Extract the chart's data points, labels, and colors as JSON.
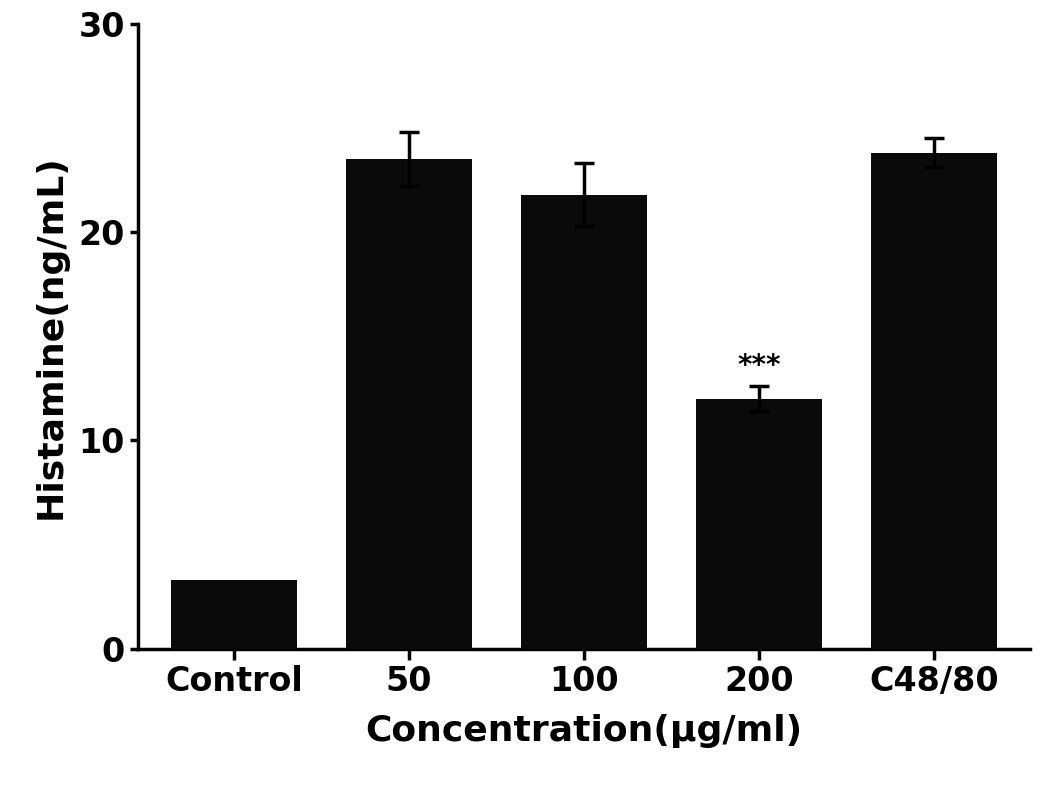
{
  "categories": [
    "Control",
    "50",
    "100",
    "200",
    "C48/80"
  ],
  "values": [
    3.3,
    23.5,
    21.8,
    12.0,
    23.8
  ],
  "errors": [
    0.0,
    1.3,
    1.5,
    0.6,
    0.7
  ],
  "bar_color": "#0a0a0a",
  "ylabel": "Histamine(ng/mL)",
  "xlabel": "Concentration(μg/ml)",
  "ylim": [
    0,
    30
  ],
  "yticks": [
    0,
    10,
    20,
    30
  ],
  "significance": {
    "index": 3,
    "label": "***"
  },
  "figsize": [
    10.62,
    7.91
  ],
  "dpi": 100,
  "bar_width": 0.72,
  "fontsize_axis_label": 26,
  "fontsize_tick": 24,
  "fontsize_sig": 20,
  "spine_linewidth": 2.5,
  "capsize": 7,
  "errorbar_linewidth": 2.5,
  "capthick": 2.5
}
